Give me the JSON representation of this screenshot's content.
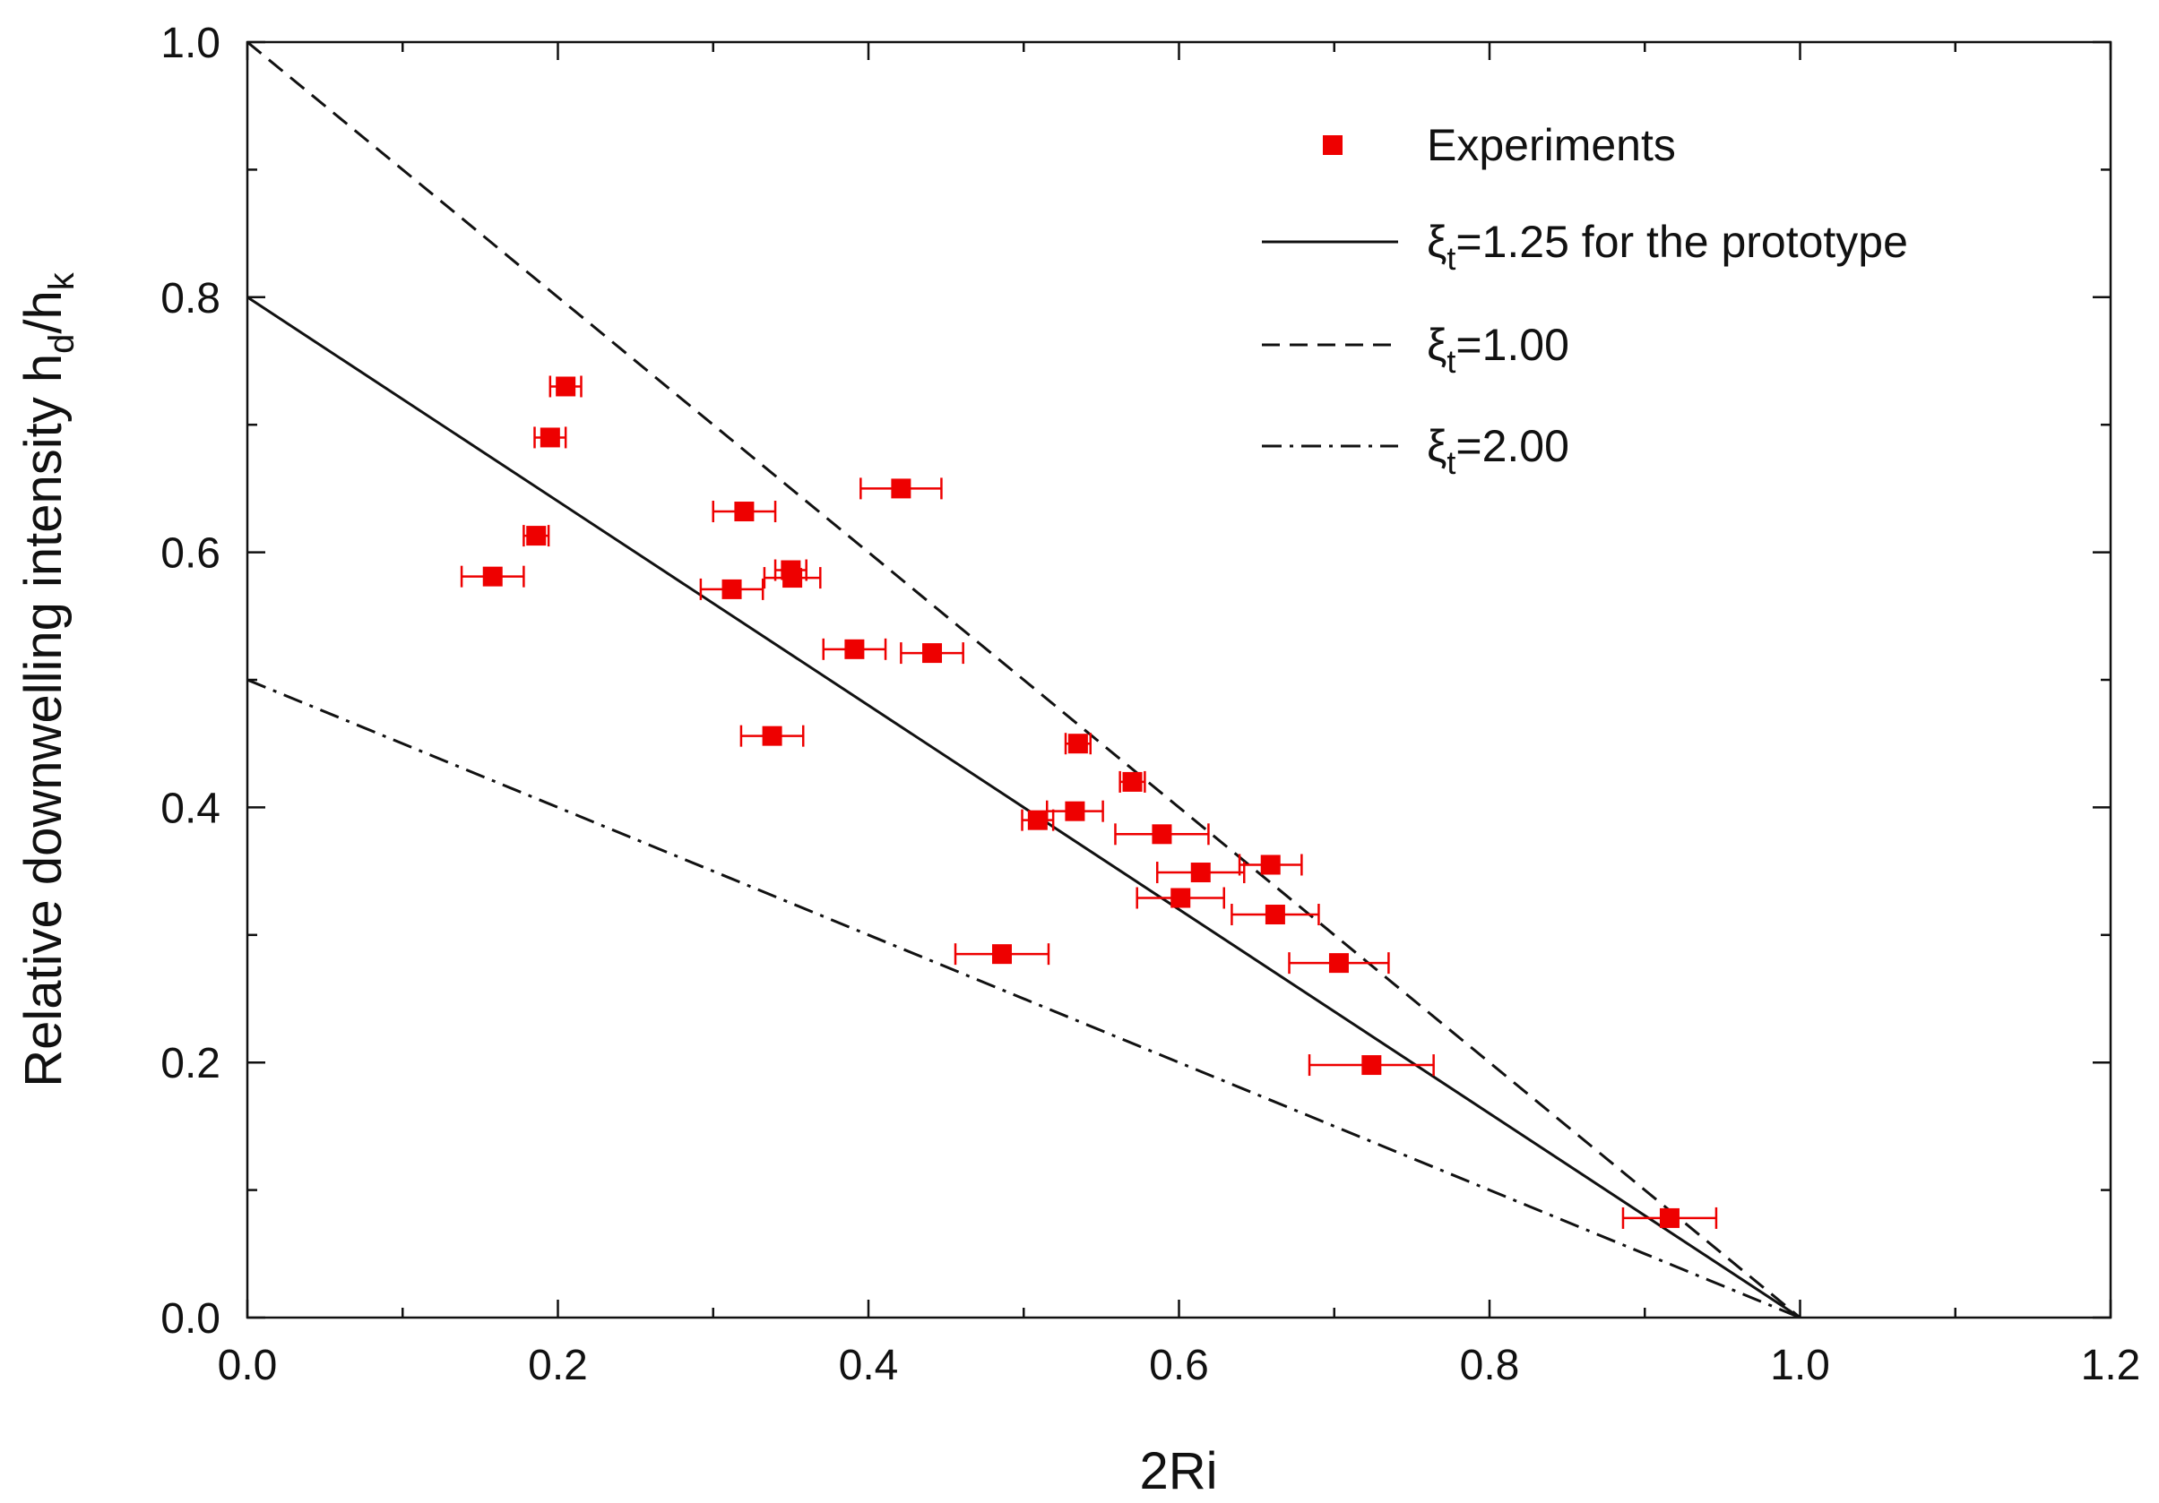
{
  "chart_data": {
    "type": "scatter",
    "title": "",
    "xlabel": "2Ri",
    "ylabel": "Relative downwelling intensity h",
    "ylabel_sub1": "d",
    "ylabel_mid": "/h",
    "ylabel_sub2": "k",
    "xlim": [
      0.0,
      1.2
    ],
    "ylim": [
      0.0,
      1.0
    ],
    "x_ticks": [
      "0.0",
      "0.2",
      "0.4",
      "0.6",
      "0.8",
      "1.0",
      "1.2"
    ],
    "y_ticks": [
      "0.0",
      "0.2",
      "0.4",
      "0.6",
      "0.8",
      "1.0"
    ],
    "legend": [
      {
        "key": "experiments",
        "style": "marker",
        "prefix": "Experiments",
        "sub": "",
        "suffix": ""
      },
      {
        "key": "xi125",
        "style": "solid",
        "prefix": "ξ",
        "sub": "t",
        "suffix": "=1.25 for the prototype"
      },
      {
        "key": "xi100",
        "style": "dash",
        "prefix": "ξ",
        "sub": "t",
        "suffix": "=1.00"
      },
      {
        "key": "xi200",
        "style": "dashdot",
        "prefix": "ξ",
        "sub": "t",
        "suffix": "=2.00"
      }
    ],
    "lines": [
      {
        "name": "ξt=1.25 for the prototype",
        "style": "solid",
        "x": [
          0.0,
          1.0
        ],
        "y": [
          0.8,
          0.0
        ]
      },
      {
        "name": "ξt=1.00",
        "style": "dash",
        "x": [
          0.0,
          0.5,
          0.9,
          1.0
        ],
        "y": [
          1.0,
          0.5,
          0.1,
          0.0
        ]
      },
      {
        "name": "ξt=2.00",
        "style": "dashdot",
        "x": [
          0.0,
          0.2,
          0.4,
          0.6,
          0.8,
          0.9,
          0.95,
          1.0
        ],
        "y": [
          0.5,
          0.4,
          0.3,
          0.2,
          0.1,
          0.05,
          0.025,
          0.0
        ]
      }
    ],
    "experiments": {
      "name": "Experiments",
      "color": "#ee0000",
      "points": [
        {
          "x": 0.205,
          "y": 0.73,
          "xerr": 0.01
        },
        {
          "x": 0.195,
          "y": 0.69,
          "xerr": 0.01
        },
        {
          "x": 0.186,
          "y": 0.613,
          "xerr": 0.008
        },
        {
          "x": 0.158,
          "y": 0.581,
          "xerr": 0.02
        },
        {
          "x": 0.32,
          "y": 0.632,
          "xerr": 0.02
        },
        {
          "x": 0.312,
          "y": 0.571,
          "xerr": 0.02
        },
        {
          "x": 0.35,
          "y": 0.586,
          "xerr": 0.01
        },
        {
          "x": 0.351,
          "y": 0.58,
          "xerr": 0.018
        },
        {
          "x": 0.421,
          "y": 0.65,
          "xerr": 0.026
        },
        {
          "x": 0.391,
          "y": 0.524,
          "xerr": 0.02
        },
        {
          "x": 0.441,
          "y": 0.521,
          "xerr": 0.02
        },
        {
          "x": 0.338,
          "y": 0.456,
          "xerr": 0.02
        },
        {
          "x": 0.535,
          "y": 0.45,
          "xerr": 0.008
        },
        {
          "x": 0.57,
          "y": 0.42,
          "xerr": 0.008
        },
        {
          "x": 0.533,
          "y": 0.397,
          "xerr": 0.018
        },
        {
          "x": 0.509,
          "y": 0.39,
          "xerr": 0.01
        },
        {
          "x": 0.589,
          "y": 0.379,
          "xerr": 0.03
        },
        {
          "x": 0.614,
          "y": 0.349,
          "xerr": 0.028
        },
        {
          "x": 0.659,
          "y": 0.355,
          "xerr": 0.02
        },
        {
          "x": 0.601,
          "y": 0.329,
          "xerr": 0.028
        },
        {
          "x": 0.662,
          "y": 0.316,
          "xerr": 0.028
        },
        {
          "x": 0.486,
          "y": 0.285,
          "xerr": 0.03
        },
        {
          "x": 0.703,
          "y": 0.278,
          "xerr": 0.032
        },
        {
          "x": 0.724,
          "y": 0.198,
          "xerr": 0.04
        },
        {
          "x": 0.916,
          "y": 0.078,
          "xerr": 0.03
        }
      ]
    }
  }
}
